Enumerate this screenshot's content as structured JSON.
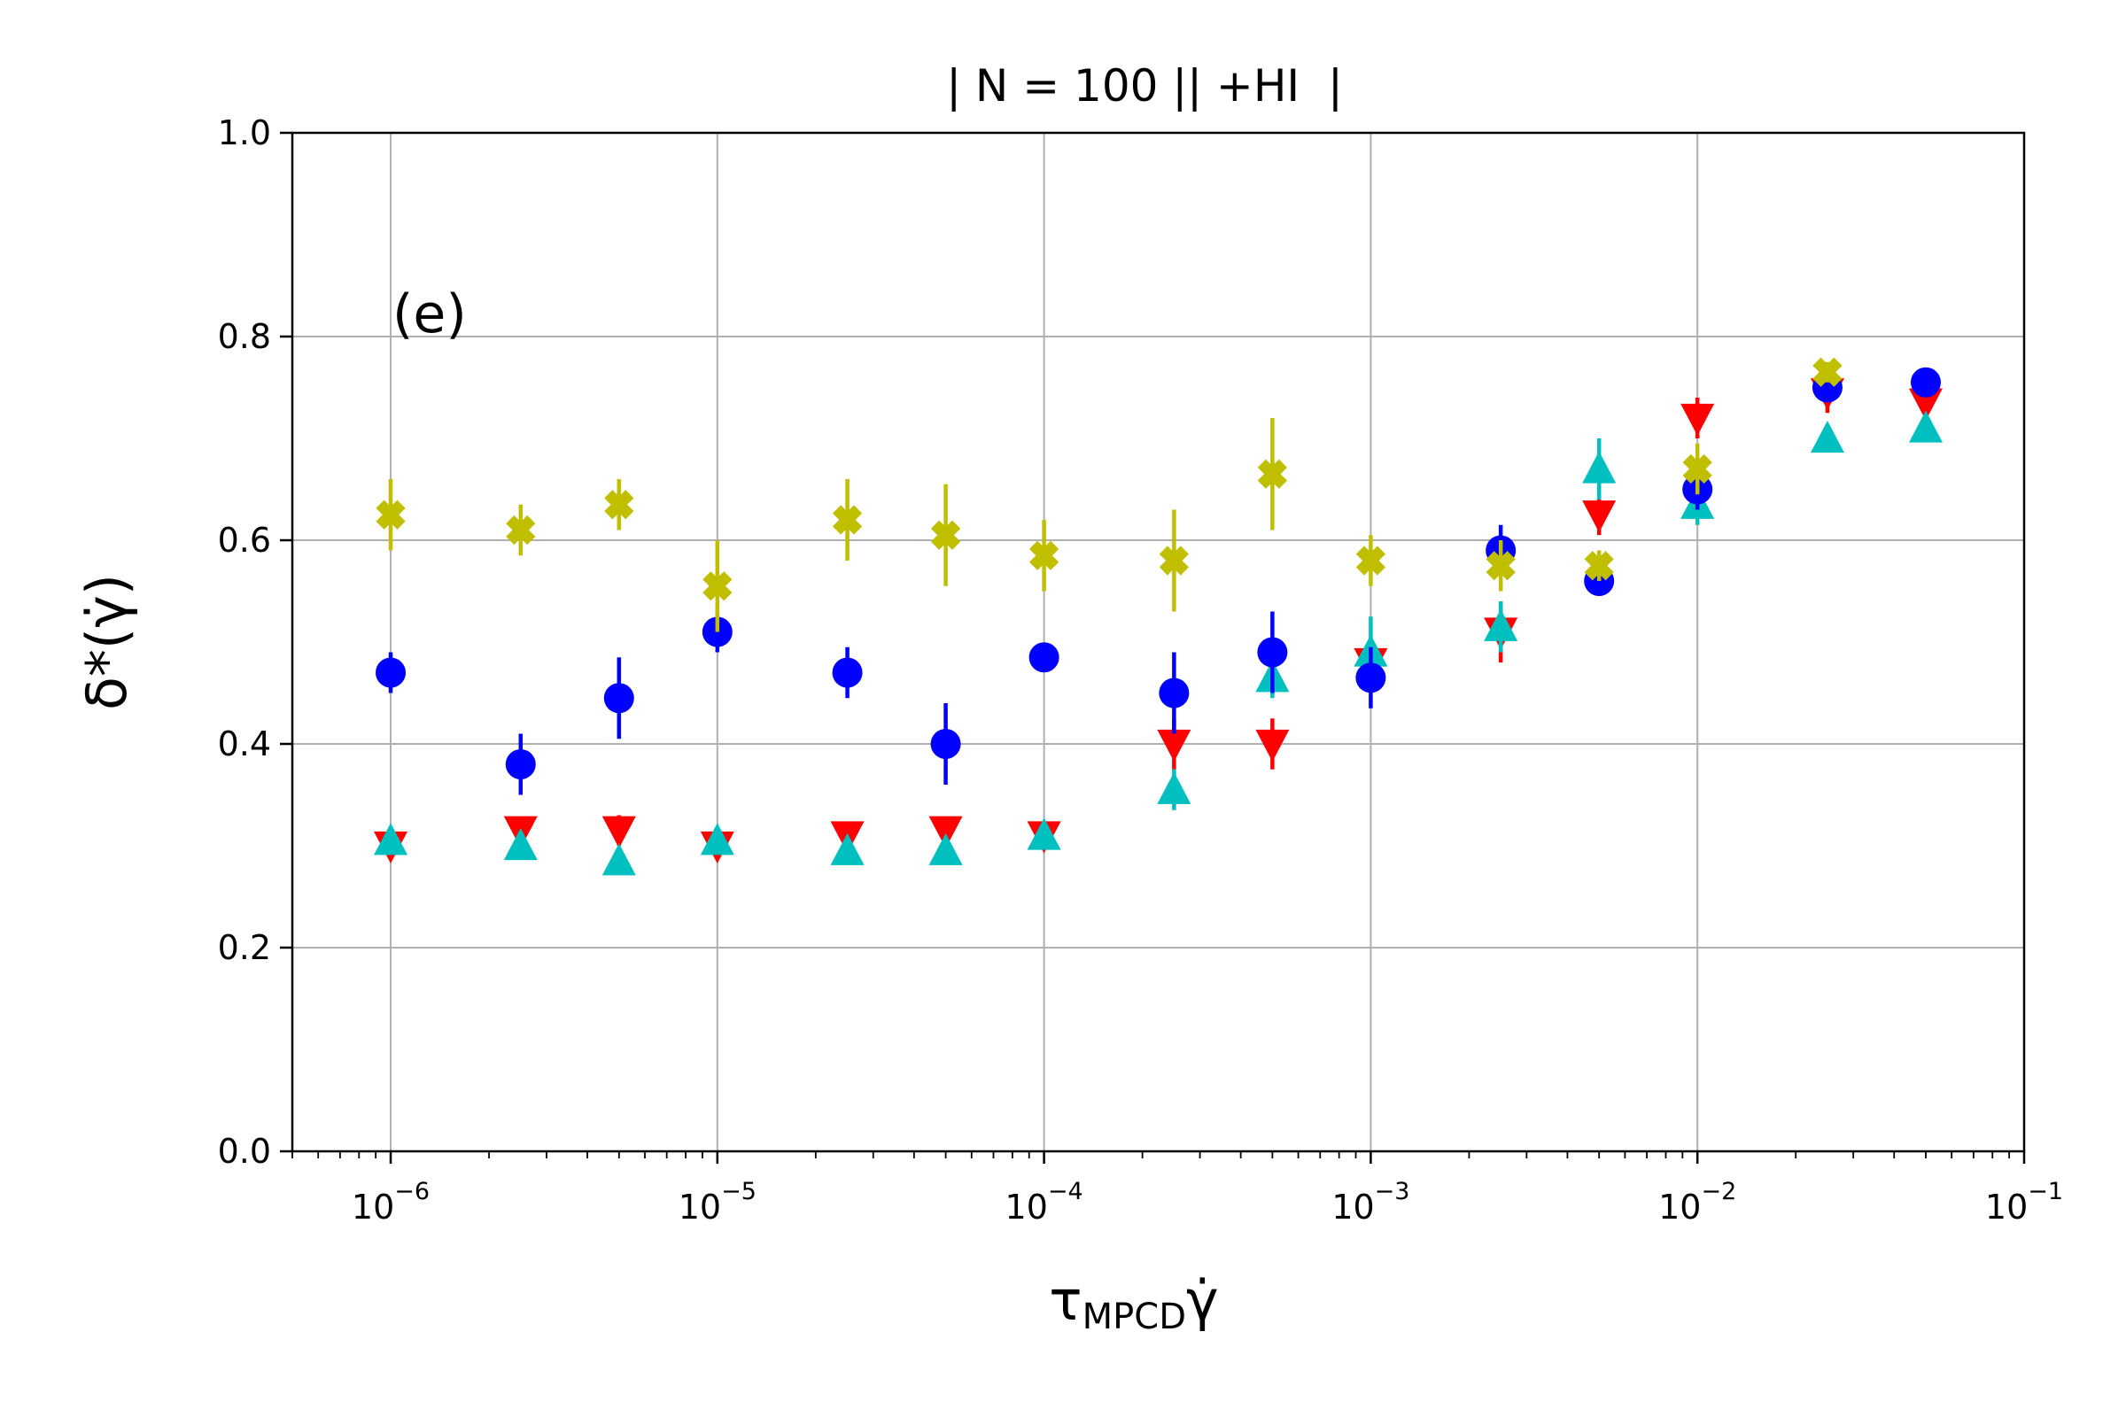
{
  "chart_data": {
    "type": "scatter",
    "title": "| N = 100 || +HI  |",
    "panel_label": "(e)",
    "xlabel": {
      "main": "τ",
      "sub": "MPCD",
      "tail": "γ̇"
    },
    "ylabel": "δ*(γ̇)",
    "xscale": "log",
    "xlim": [
      5e-07,
      0.1
    ],
    "ylim": [
      0.0,
      1.0
    ],
    "grid": true,
    "x_ticks": [
      {
        "value": 1e-06,
        "base": "10",
        "exp": "−6"
      },
      {
        "value": 1e-05,
        "base": "10",
        "exp": "−5"
      },
      {
        "value": 0.0001,
        "base": "10",
        "exp": "−4"
      },
      {
        "value": 0.001,
        "base": "10",
        "exp": "−3"
      },
      {
        "value": 0.01,
        "base": "10",
        "exp": "−2"
      },
      {
        "value": 0.1,
        "base": "10",
        "exp": "−1"
      }
    ],
    "y_ticks": [
      {
        "value": 0.0,
        "label": "0.0"
      },
      {
        "value": 0.2,
        "label": "0.2"
      },
      {
        "value": 0.4,
        "label": "0.4"
      },
      {
        "value": 0.6,
        "label": "0.6"
      },
      {
        "value": 0.8,
        "label": "0.8"
      },
      {
        "value": 1.0,
        "label": "1.0"
      }
    ],
    "series": [
      {
        "name": "red-down-triangle",
        "marker": "triangle-down",
        "color": "#ff0000",
        "points": [
          {
            "x": 1e-06,
            "y": 0.3,
            "err": 0.01
          },
          {
            "x": 2.5e-06,
            "y": 0.315,
            "err": 0.01
          },
          {
            "x": 5e-06,
            "y": 0.315,
            "err": 0.015
          },
          {
            "x": 1e-05,
            "y": 0.3,
            "err": 0.01
          },
          {
            "x": 2.5e-05,
            "y": 0.31,
            "err": 0.01
          },
          {
            "x": 5e-05,
            "y": 0.315,
            "err": 0.01
          },
          {
            "x": 0.0001,
            "y": 0.31,
            "err": 0.01
          },
          {
            "x": 0.00025,
            "y": 0.4,
            "err": 0.025
          },
          {
            "x": 0.0005,
            "y": 0.4,
            "err": 0.025
          },
          {
            "x": 0.001,
            "y": 0.48,
            "err": 0.01
          },
          {
            "x": 0.0025,
            "y": 0.51,
            "err": 0.03
          },
          {
            "x": 0.005,
            "y": 0.625,
            "err": 0.02
          },
          {
            "x": 0.01,
            "y": 0.72,
            "err": 0.02
          },
          {
            "x": 0.025,
            "y": 0.745,
            "err": 0.02
          },
          {
            "x": 0.05,
            "y": 0.735,
            "err": 0.015
          }
        ]
      },
      {
        "name": "cyan-up-triangle",
        "marker": "triangle-up",
        "color": "#00bfbf",
        "points": [
          {
            "x": 1e-06,
            "y": 0.305,
            "err": 0.01
          },
          {
            "x": 2.5e-06,
            "y": 0.3,
            "err": 0.01
          },
          {
            "x": 5e-06,
            "y": 0.285,
            "err": 0.01
          },
          {
            "x": 1e-05,
            "y": 0.305,
            "err": 0.01
          },
          {
            "x": 2.5e-05,
            "y": 0.295,
            "err": 0.01
          },
          {
            "x": 5e-05,
            "y": 0.295,
            "err": 0.01
          },
          {
            "x": 0.0001,
            "y": 0.31,
            "err": 0.01
          },
          {
            "x": 0.00025,
            "y": 0.355,
            "err": 0.02
          },
          {
            "x": 0.0005,
            "y": 0.465,
            "err": 0.02
          },
          {
            "x": 0.001,
            "y": 0.49,
            "err": 0.035
          },
          {
            "x": 0.0025,
            "y": 0.515,
            "err": 0.025
          },
          {
            "x": 0.005,
            "y": 0.67,
            "err": 0.03
          },
          {
            "x": 0.01,
            "y": 0.635,
            "err": 0.02
          },
          {
            "x": 0.025,
            "y": 0.7,
            "err": 0.01
          },
          {
            "x": 0.05,
            "y": 0.71,
            "err": 0.01
          }
        ]
      },
      {
        "name": "blue-circle",
        "marker": "circle",
        "color": "#0000ff",
        "points": [
          {
            "x": 1e-06,
            "y": 0.47,
            "err": 0.02
          },
          {
            "x": 2.5e-06,
            "y": 0.38,
            "err": 0.03
          },
          {
            "x": 5e-06,
            "y": 0.445,
            "err": 0.04
          },
          {
            "x": 1e-05,
            "y": 0.51,
            "err": 0.02
          },
          {
            "x": 2.5e-05,
            "y": 0.47,
            "err": 0.025
          },
          {
            "x": 5e-05,
            "y": 0.4,
            "err": 0.04
          },
          {
            "x": 0.0001,
            "y": 0.485,
            "err": 0.01
          },
          {
            "x": 0.00025,
            "y": 0.45,
            "err": 0.04
          },
          {
            "x": 0.0005,
            "y": 0.49,
            "err": 0.04
          },
          {
            "x": 0.001,
            "y": 0.465,
            "err": 0.03
          },
          {
            "x": 0.0025,
            "y": 0.59,
            "err": 0.025
          },
          {
            "x": 0.005,
            "y": 0.56,
            "err": 0.01
          },
          {
            "x": 0.01,
            "y": 0.65,
            "err": 0.02
          },
          {
            "x": 0.025,
            "y": 0.75,
            "err": 0.01
          },
          {
            "x": 0.05,
            "y": 0.755,
            "err": 0.01
          }
        ]
      },
      {
        "name": "olive-x",
        "marker": "x-filled",
        "color": "#bfbf00",
        "points": [
          {
            "x": 1e-06,
            "y": 0.625,
            "err": 0.035
          },
          {
            "x": 2.5e-06,
            "y": 0.61,
            "err": 0.025
          },
          {
            "x": 5e-06,
            "y": 0.635,
            "err": 0.025
          },
          {
            "x": 1e-05,
            "y": 0.555,
            "err": 0.045
          },
          {
            "x": 2.5e-05,
            "y": 0.62,
            "err": 0.04
          },
          {
            "x": 5e-05,
            "y": 0.605,
            "err": 0.05
          },
          {
            "x": 0.0001,
            "y": 0.585,
            "err": 0.035
          },
          {
            "x": 0.00025,
            "y": 0.58,
            "err": 0.05
          },
          {
            "x": 0.0005,
            "y": 0.665,
            "err": 0.055
          },
          {
            "x": 0.001,
            "y": 0.58,
            "err": 0.025
          },
          {
            "x": 0.0025,
            "y": 0.575,
            "err": 0.025
          },
          {
            "x": 0.005,
            "y": 0.575,
            "err": 0.015
          },
          {
            "x": 0.01,
            "y": 0.67,
            "err": 0.025
          },
          {
            "x": 0.025,
            "y": 0.765,
            "err": 0.01
          }
        ]
      }
    ]
  }
}
